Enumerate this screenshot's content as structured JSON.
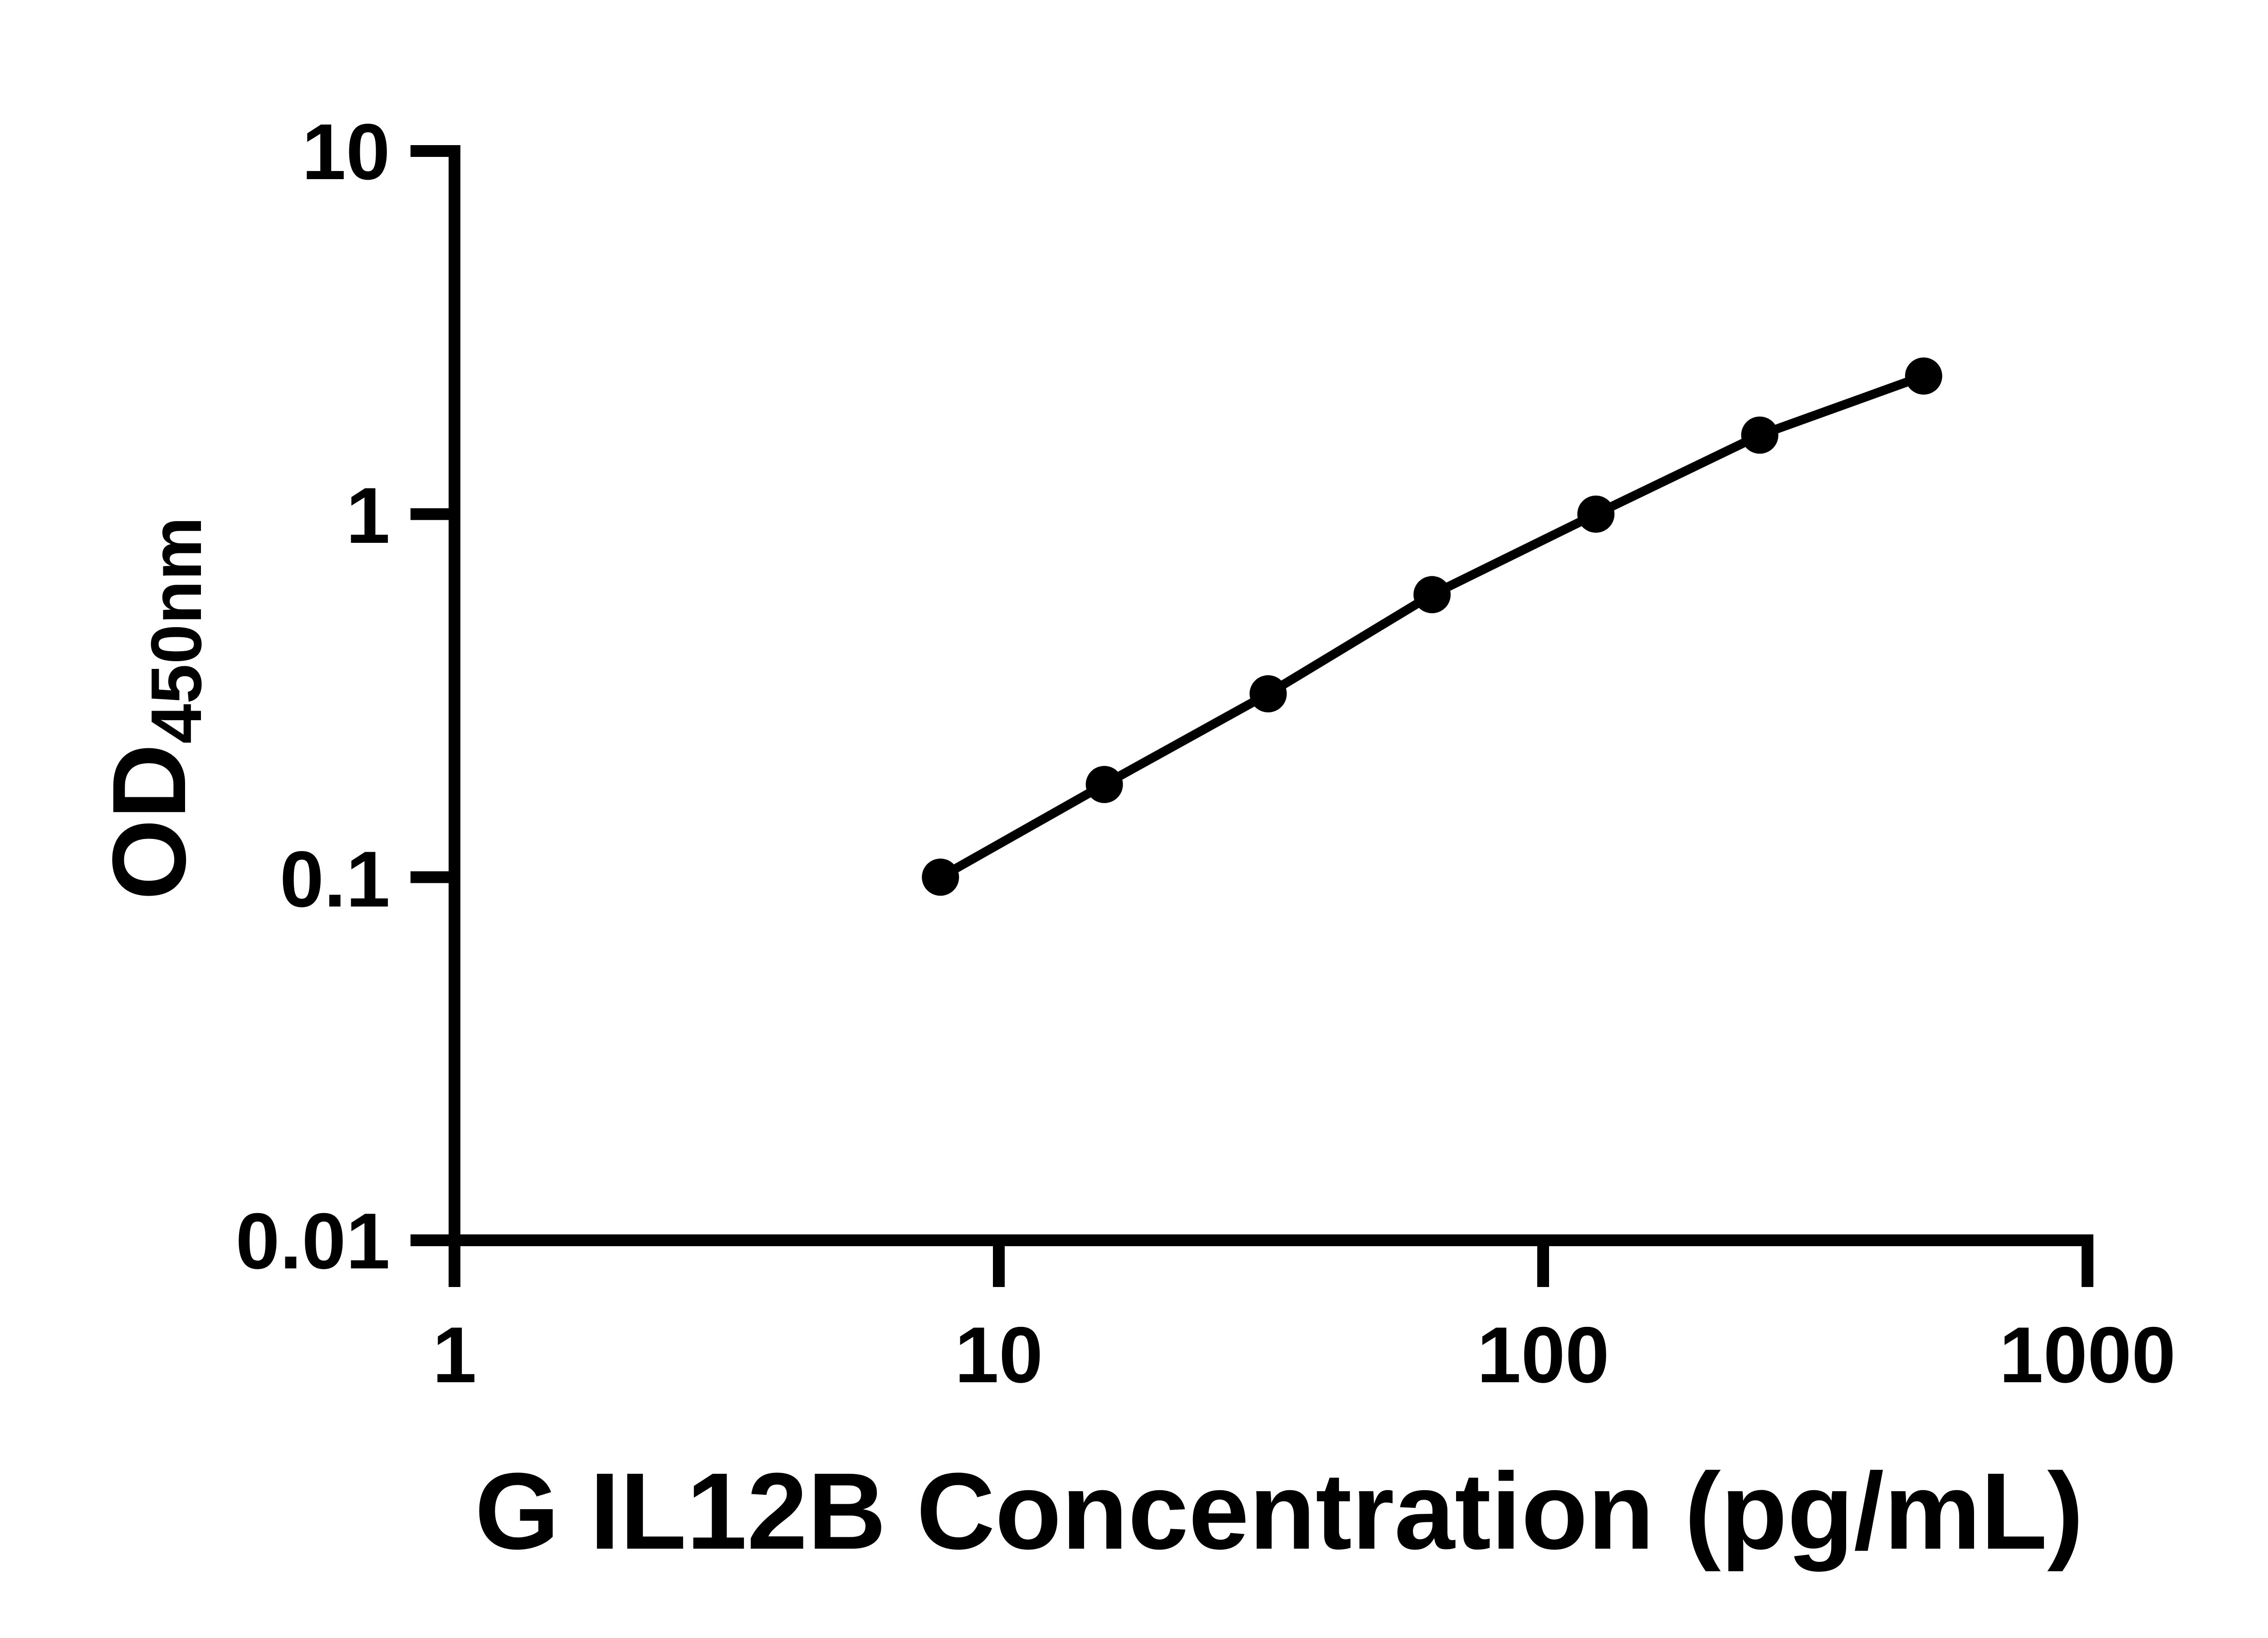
{
  "chart_data": {
    "type": "scatter",
    "subtype": "line-connected-scatter",
    "title": "",
    "xlabel": "G IL12B Concentration (pg/mL)",
    "ylabel": "OD450nm",
    "ylabel_base": "OD",
    "ylabel_subscript": "450nm",
    "x_scale": "log10",
    "y_scale": "log10",
    "xlim": [
      1,
      1000
    ],
    "ylim": [
      0.01,
      10
    ],
    "grid": false,
    "legend": false,
    "marker_shape": "filled-circle",
    "series": [
      {
        "x": [
          7.8125,
          15.625,
          31.25,
          62.5,
          125,
          250,
          500
        ],
        "od": [
          0.1,
          0.18,
          0.32,
          0.6,
          1.0,
          1.65,
          2.4
        ]
      }
    ],
    "x_ticks": [
      {
        "value": 1,
        "label": "1"
      },
      {
        "value": 10,
        "label": "10"
      },
      {
        "value": 100,
        "label": "100"
      },
      {
        "value": 1000,
        "label": "1000"
      }
    ],
    "y_ticks": [
      {
        "value": 10,
        "label": "10"
      },
      {
        "value": 1,
        "label": "1"
      },
      {
        "value": 0.1,
        "label": "0.1"
      },
      {
        "value": 0.01,
        "label": "0.01"
      }
    ],
    "colors": {
      "axis": "#000000",
      "marker": "#000000",
      "line": "#000000",
      "text": "#000000",
      "background": "#ffffff"
    }
  }
}
